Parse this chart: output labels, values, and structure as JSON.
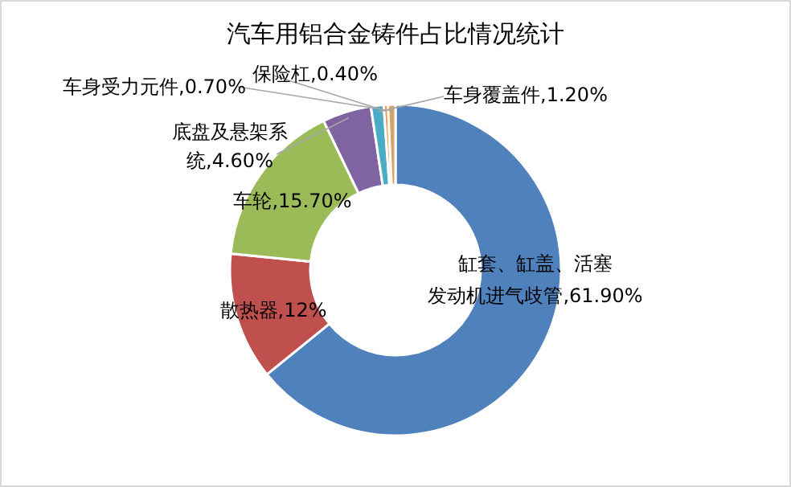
{
  "chart_data": {
    "type": "donut",
    "title": "汽车用铝合金铸件占比情况统计",
    "categories": [
      "缸套、缸盖、活塞发动机进气歧管",
      "散热器",
      "车轮",
      "底盘及悬架系统",
      "车身覆盖件",
      "保险杠",
      "车身受力元件"
    ],
    "values": [
      61.9,
      12,
      15.7,
      4.6,
      1.2,
      0.4,
      0.7
    ],
    "value_labels": [
      "61.90%",
      "12%",
      "15.70%",
      "4.60%",
      "1.20%",
      "0.40%",
      "0.70%"
    ],
    "colors": [
      "#4f81bd",
      "#c0504d",
      "#9bbb59",
      "#8064a2",
      "#4bacc6",
      "#f79646",
      "#d6a36b"
    ],
    "legend": false
  }
}
